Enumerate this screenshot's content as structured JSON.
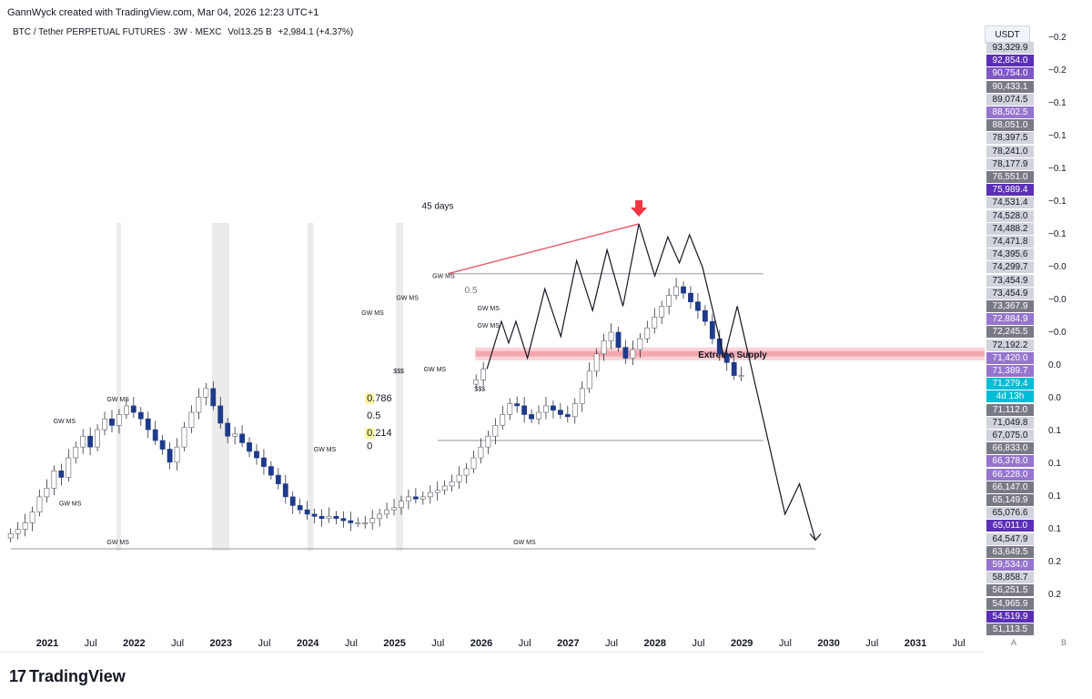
{
  "header": {
    "created": "GannWyck created with TradingView.com, Mar 04, 2026 12:23 UTC+1",
    "symbol": "BTC / Tether PERPETUAL FUTURES · 3W · MEXC",
    "volume": "Vol13.25 B",
    "change": "+2,984.1 (+4.37%)"
  },
  "axis": {
    "currency": "USDT",
    "buttons": [
      "A",
      "B"
    ]
  },
  "footer": {
    "logo_text": "TradingView",
    "logo_mark": "17"
  },
  "colors": {
    "up": "#ffffff",
    "down": "#1e3a8a",
    "wick": "#131722",
    "red": "#f23645",
    "supply": "#f7b6bd",
    "grid": "#e0e3eb",
    "purple": "#7e57c2",
    "cyan": "#00bcd4"
  },
  "price_labels": [
    {
      "text": "93,329.9",
      "bg": "#d1d4dc",
      "fg": "#131722"
    },
    {
      "text": "92,854.0",
      "bg": "#5b2fb5",
      "fg": "#ffffff"
    },
    {
      "text": "90,754.0",
      "bg": "#7e57c2",
      "fg": "#ffffff"
    },
    {
      "text": "90,433.1",
      "bg": "#787b86",
      "fg": "#ffffff"
    },
    {
      "text": "89,074.5",
      "bg": "#d1d4dc",
      "fg": "#131722"
    },
    {
      "text": "88,502.5",
      "bg": "#9575cd",
      "fg": "#ffffff"
    },
    {
      "text": "88,051.0",
      "bg": "#787b86",
      "fg": "#ffffff"
    },
    {
      "text": "78,397.5",
      "bg": "#d1d4dc",
      "fg": "#131722"
    },
    {
      "text": "78,241.0",
      "bg": "#d1d4dc",
      "fg": "#131722"
    },
    {
      "text": "78,177.9",
      "bg": "#d1d4dc",
      "fg": "#131722"
    },
    {
      "text": "76,551.0",
      "bg": "#787b86",
      "fg": "#ffffff"
    },
    {
      "text": "75,989.4",
      "bg": "#5b2fb5",
      "fg": "#ffffff"
    },
    {
      "text": "74,531.4",
      "bg": "#d1d4dc",
      "fg": "#131722"
    },
    {
      "text": "74,528.0",
      "bg": "#d1d4dc",
      "fg": "#131722"
    },
    {
      "text": "74,488.2",
      "bg": "#d1d4dc",
      "fg": "#131722"
    },
    {
      "text": "74,471.8",
      "bg": "#d1d4dc",
      "fg": "#131722"
    },
    {
      "text": "74,395.6",
      "bg": "#d1d4dc",
      "fg": "#131722"
    },
    {
      "text": "74,299.7",
      "bg": "#d1d4dc",
      "fg": "#131722"
    },
    {
      "text": "73,454.9",
      "bg": "#d1d4dc",
      "fg": "#131722"
    },
    {
      "text": "73,454.9",
      "bg": "#d1d4dc",
      "fg": "#131722"
    },
    {
      "text": "73,367.9",
      "bg": "#787b86",
      "fg": "#ffffff"
    },
    {
      "text": "72,884.9",
      "bg": "#9575cd",
      "fg": "#ffffff"
    },
    {
      "text": "72,245.5",
      "bg": "#787b86",
      "fg": "#ffffff"
    },
    {
      "text": "72,192.2",
      "bg": "#d1d4dc",
      "fg": "#131722"
    },
    {
      "text": "71,420.0",
      "bg": "#9575cd",
      "fg": "#ffffff"
    },
    {
      "text": "71,389.7",
      "bg": "#9575cd",
      "fg": "#ffffff"
    },
    {
      "text": "71,279.4",
      "bg": "#00bcd4",
      "fg": "#ffffff"
    },
    {
      "text": "4d 13h",
      "bg": "#00bcd4",
      "fg": "#ffffff"
    },
    {
      "text": "71,112.0",
      "bg": "#787b86",
      "fg": "#ffffff"
    },
    {
      "text": "71,049.8",
      "bg": "#d1d4dc",
      "fg": "#131722"
    },
    {
      "text": "67,075.0",
      "bg": "#d1d4dc",
      "fg": "#131722"
    },
    {
      "text": "66,833.0",
      "bg": "#787b86",
      "fg": "#ffffff"
    },
    {
      "text": "66,378.0",
      "bg": "#9575cd",
      "fg": "#ffffff"
    },
    {
      "text": "66,228.0",
      "bg": "#9575cd",
      "fg": "#ffffff"
    },
    {
      "text": "66,147.0",
      "bg": "#787b86",
      "fg": "#ffffff"
    },
    {
      "text": "65,149.9",
      "bg": "#787b86",
      "fg": "#ffffff"
    },
    {
      "text": "65,076.6",
      "bg": "#d1d4dc",
      "fg": "#131722"
    },
    {
      "text": "65,011.0",
      "bg": "#5b2fb5",
      "fg": "#ffffff"
    },
    {
      "text": "64,547.9",
      "bg": "#d1d4dc",
      "fg": "#131722"
    },
    {
      "text": "63,649.5",
      "bg": "#787b86",
      "fg": "#ffffff"
    },
    {
      "text": "59,534.0",
      "bg": "#9575cd",
      "fg": "#ffffff"
    },
    {
      "text": "58,858.7",
      "bg": "#d1d4dc",
      "fg": "#131722"
    },
    {
      "text": "56,251.5",
      "bg": "#787b86",
      "fg": "#ffffff"
    },
    {
      "text": "54,965.9",
      "bg": "#787b86",
      "fg": "#ffffff"
    },
    {
      "text": "54,519.9",
      "bg": "#5b2fb5",
      "fg": "#ffffff"
    },
    {
      "text": "51,113.5",
      "bg": "#787b86",
      "fg": "#ffffff"
    }
  ],
  "right_scale": [
    "−0.2",
    "−0.2",
    "−0.1",
    "−0.1",
    "−0.1",
    "−0.1",
    "−0.1",
    "−0.0",
    "−0.0",
    "−0.0",
    "0.0",
    "0.0",
    "0.1",
    "0.1",
    "0.1",
    "0.1",
    "0.2",
    "0.2"
  ],
  "chart_data": {
    "type": "candlestick",
    "title": "BTC / Tether PERPETUAL FUTURES · 3W · MEXC",
    "x_ticks": [
      {
        "label": "2021",
        "bold": true
      },
      {
        "label": "Jul",
        "bold": false
      },
      {
        "label": "2022",
        "bold": true
      },
      {
        "label": "Jul",
        "bold": false
      },
      {
        "label": "2023",
        "bold": true
      },
      {
        "label": "Jul",
        "bold": false
      },
      {
        "label": "2024",
        "bold": true
      },
      {
        "label": "Jul",
        "bold": false
      },
      {
        "label": "2025",
        "bold": true
      },
      {
        "label": "Jul",
        "bold": false
      },
      {
        "label": "2026",
        "bold": true
      },
      {
        "label": "Jul",
        "bold": false
      },
      {
        "label": "2027",
        "bold": true
      },
      {
        "label": "Jul",
        "bold": false
      },
      {
        "label": "2028",
        "bold": true
      },
      {
        "label": "Jul",
        "bold": false
      },
      {
        "label": "2029",
        "bold": true
      },
      {
        "label": "Jul",
        "bold": false
      },
      {
        "label": "2030",
        "bold": true
      },
      {
        "label": "Jul",
        "bold": false
      },
      {
        "label": "2031",
        "bold": true
      },
      {
        "label": "Jul",
        "bold": false
      }
    ],
    "segments": [
      {
        "start": -0.02,
        "vals": [
          0.07,
          0.09,
          0.12,
          0.17,
          0.24,
          0.28,
          0.36,
          0.33,
          0.42,
          0.47,
          0.52,
          0.47,
          0.55,
          0.6,
          0.57,
          0.62,
          0.66,
          0.63,
          0.6,
          0.55,
          0.5,
          0.46,
          0.4,
          0.47,
          0.56,
          0.63,
          0.7,
          0.74,
          0.66,
          0.58,
          0.52,
          0.53,
          0.49,
          0.45,
          0.42,
          0.38,
          0.34,
          0.3,
          0.24,
          0.2,
          0.18,
          0.16,
          0.15,
          0.14,
          0.15,
          0.14,
          0.13,
          0.12,
          0.12,
          0.12,
          0.14,
          0.16,
          0.18,
          0.19,
          0.22,
          0.24,
          0.23,
          0.24,
          0.26,
          0.27,
          0.29,
          0.31,
          0.34,
          0.37,
          0.42,
          0.47,
          0.52,
          0.57,
          0.62,
          0.67,
          0.66,
          0.62,
          0.6,
          0.63,
          0.66,
          0.64,
          0.62,
          0.61,
          0.67,
          0.74,
          0.82,
          0.9,
          0.96,
          1.0,
          0.93,
          0.88,
          0.92,
          0.97,
          1.02,
          1.07,
          1.12,
          1.17,
          1.21,
          1.18,
          1.14,
          1.1,
          1.05,
          0.97,
          0.9,
          0.86,
          0.8,
          0.8
        ]
      },
      {
        "start": 32.15,
        "vals": [
          0.78,
          0.83
        ]
      }
    ],
    "projection": [
      [
        32.9,
        0.83
      ],
      [
        33.9,
        1.05
      ],
      [
        34.4,
        0.95
      ],
      [
        34.9,
        1.05
      ],
      [
        35.7,
        0.88
      ],
      [
        36.9,
        1.2
      ],
      [
        38.0,
        0.98
      ],
      [
        39.1,
        1.33
      ],
      [
        40.2,
        1.1
      ],
      [
        41.2,
        1.38
      ],
      [
        42.3,
        1.12
      ],
      [
        43.4,
        1.5
      ],
      [
        44.5,
        1.26
      ],
      [
        45.4,
        1.44
      ],
      [
        46.2,
        1.32
      ],
      [
        46.9,
        1.45
      ],
      [
        47.8,
        1.3
      ],
      [
        49.3,
        0.88
      ],
      [
        50.2,
        1.12
      ],
      [
        53.5,
        0.16
      ],
      [
        54.5,
        0.3
      ],
      [
        55.6,
        0.04
      ]
    ],
    "top_arrow": {
      "x": 43.4,
      "y": 1.5
    },
    "trend_lines": [
      {
        "from": [
          30.2,
          1.27
        ],
        "to": [
          43.4,
          1.5
        ],
        "color": "red"
      },
      {
        "from": [
          30.2,
          1.27
        ],
        "to": [
          52.0,
          1.27
        ],
        "color": "grey"
      },
      {
        "from": [
          29.5,
          0.5
        ],
        "to": [
          52.0,
          0.5
        ],
        "color": "grey"
      },
      {
        "from": [
          0.0,
          0.0
        ],
        "to": [
          55.6,
          0.0
        ],
        "color": "grey"
      }
    ],
    "supply_zone": {
      "label": "Extreme Supply",
      "from_x": 32.1,
      "to_x": 63.0,
      "from_y": 0.93,
      "to_y": 0.87
    },
    "annotations": [
      {
        "text": "45 days",
        "x": 29.5,
        "y": 1.57
      },
      {
        "text": "GW MS",
        "x": 7.4,
        "y": 0.68
      },
      {
        "text": "GW MS",
        "x": 3.7,
        "y": 0.58
      },
      {
        "text": "GW MS",
        "x": 4.1,
        "y": 0.2
      },
      {
        "text": "GW MS",
        "x": 7.4,
        "y": 0.02
      },
      {
        "text": "GW MS",
        "x": 21.7,
        "y": 0.45
      },
      {
        "text": "GW MS",
        "x": 29.3,
        "y": 0.82
      },
      {
        "text": "GW MS",
        "x": 33.0,
        "y": 1.1
      },
      {
        "text": "GW MS",
        "x": 33.0,
        "y": 1.02
      },
      {
        "text": "GW MS",
        "x": 35.5,
        "y": 0.02
      },
      {
        "text": "GW MS",
        "x": 25.0,
        "y": 1.08
      },
      {
        "text": "GW MS",
        "x": 27.4,
        "y": 1.15
      },
      {
        "text": "GW MS",
        "x": 29.9,
        "y": 1.25
      },
      {
        "text": "$$$",
        "x": 26.8,
        "y": 0.81
      },
      {
        "text": "$$$",
        "x": 32.4,
        "y": 0.73
      },
      {
        "text": "0.5",
        "x": 31.8,
        "y": 1.18
      }
    ],
    "fib_levels": [
      {
        "label": "0.786",
        "x": 24.6,
        "y": 0.68,
        "highlight": true
      },
      {
        "label": "0.5",
        "x": 24.6,
        "y": 0.6,
        "highlight": false
      },
      {
        "label": "0.214",
        "x": 24.6,
        "y": 0.52,
        "highlight": true
      },
      {
        "label": "0",
        "x": 24.6,
        "y": 0.46,
        "highlight": false
      }
    ],
    "shaded_columns": [
      [
        13.9,
        15.1
      ],
      [
        20.5,
        20.9
      ],
      [
        26.6,
        27.1
      ],
      [
        7.3,
        7.6
      ]
    ]
  }
}
